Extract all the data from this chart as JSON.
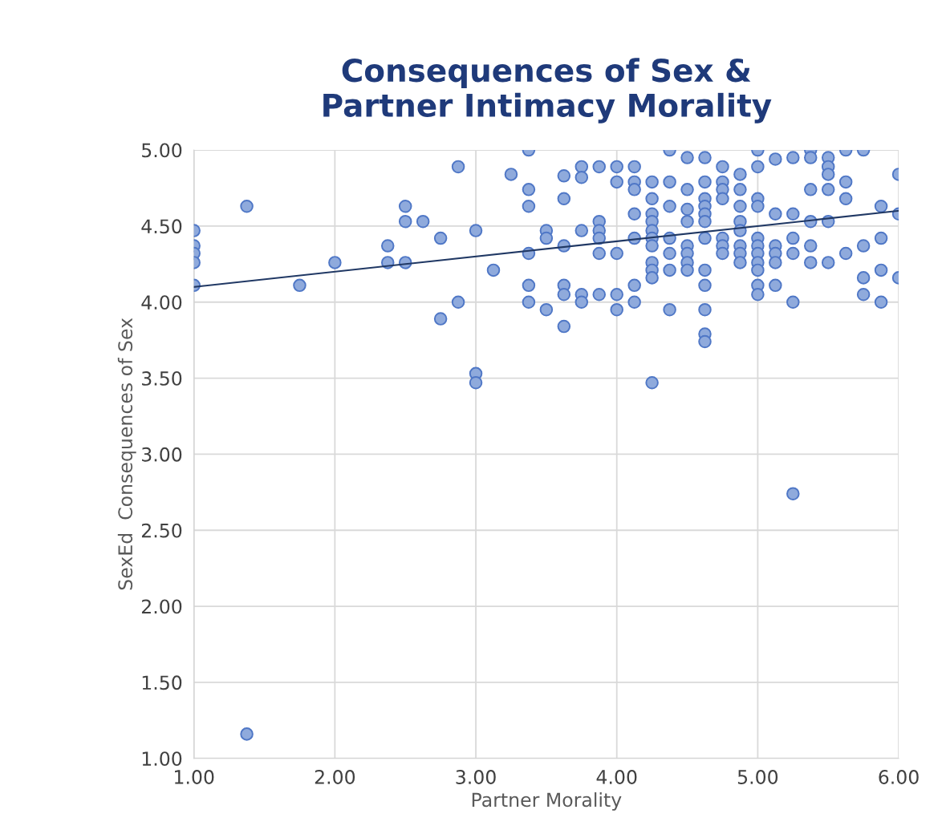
{
  "chart_data": {
    "type": "scatter",
    "title": "Consequences of Sex &\nPartner Intimacy Morality",
    "xlabel": "Partner Morality",
    "ylabel": "SexEd  Consequences of Sex",
    "xlim": [
      1,
      6
    ],
    "xticks": [
      {
        "value": 1,
        "label": "1.00"
      },
      {
        "value": 2,
        "label": "2.00"
      },
      {
        "value": 3,
        "label": "3.00"
      },
      {
        "value": 4,
        "label": "4.00"
      },
      {
        "value": 5,
        "label": "5.00"
      },
      {
        "value": 6,
        "label": "6.00"
      }
    ],
    "ylim": [
      1,
      5
    ],
    "yticks": [
      {
        "value": 1,
        "label": "1.00"
      },
      {
        "value": 1.5,
        "label": "1.50"
      },
      {
        "value": 2,
        "label": "2.00"
      },
      {
        "value": 2.5,
        "label": "2.50"
      },
      {
        "value": 3,
        "label": "3.00"
      },
      {
        "value": 3.5,
        "label": "3.50"
      },
      {
        "value": 4,
        "label": "4.00"
      },
      {
        "value": 4.5,
        "label": "4.50"
      },
      {
        "value": 5,
        "label": "5.00"
      }
    ],
    "grid": true,
    "series": [
      {
        "marker": "circle",
        "color": "#8faadc",
        "x": [
          1,
          1,
          1,
          1,
          1,
          1.375,
          1.375,
          1.75,
          2,
          2.375,
          2.375,
          2.5,
          2.5,
          2.5,
          2.625,
          2.75,
          2.75,
          2.875,
          2.875,
          3,
          3,
          3,
          3.125,
          3.25,
          3.375,
          3.375,
          3.375,
          3.375,
          3.375,
          3.375,
          3.5,
          3.5,
          3.5,
          3.625,
          3.625,
          3.625,
          3.625,
          3.625,
          3.625,
          3.75,
          3.75,
          3.75,
          3.75,
          3.75,
          3.875,
          3.875,
          3.875,
          3.875,
          3.875,
          3.875,
          4,
          4,
          4,
          4,
          4,
          4.125,
          4.125,
          4.125,
          4.125,
          4.125,
          4.125,
          4.125,
          4.25,
          4.25,
          4.25,
          4.25,
          4.25,
          4.25,
          4.25,
          4.25,
          4.25,
          4.25,
          4.25,
          4.375,
          4.375,
          4.375,
          4.375,
          4.375,
          4.375,
          4.375,
          4.5,
          4.5,
          4.5,
          4.5,
          4.5,
          4.5,
          4.5,
          4.5,
          4.625,
          4.625,
          4.625,
          4.625,
          4.625,
          4.625,
          4.625,
          4.625,
          4.625,
          4.625,
          4.625,
          4.625,
          4.75,
          4.75,
          4.75,
          4.75,
          4.75,
          4.75,
          4.75,
          4.875,
          4.875,
          4.875,
          4.875,
          4.875,
          4.875,
          4.875,
          4.875,
          5,
          5,
          5,
          5,
          5,
          5,
          5,
          5,
          5,
          5,
          5,
          5.125,
          5.125,
          5.125,
          5.125,
          5.125,
          5.125,
          5.25,
          5.25,
          5.25,
          5.25,
          5.25,
          5.25,
          5.375,
          5.375,
          5.375,
          5.375,
          5.375,
          5.375,
          5.5,
          5.5,
          5.5,
          5.5,
          5.5,
          5.5,
          5.625,
          5.625,
          5.625,
          5.625,
          5.75,
          5.75,
          5.75,
          5.75,
          5.875,
          5.875,
          5.875,
          5.875,
          6,
          6,
          6
        ],
        "values": [
          4.47,
          4.37,
          4.32,
          4.26,
          4.11,
          4.63,
          1.16,
          4.11,
          4.26,
          4.37,
          4.26,
          4.63,
          4.53,
          4.26,
          4.53,
          4.42,
          3.89,
          4.89,
          4.0,
          4.47,
          3.53,
          3.47,
          4.21,
          4.84,
          5.0,
          4.74,
          4.63,
          4.32,
          4.11,
          4.0,
          4.47,
          4.42,
          3.95,
          4.83,
          4.68,
          4.37,
          4.11,
          4.05,
          3.84,
          4.89,
          4.82,
          4.47,
          4.05,
          4.0,
          4.89,
          4.53,
          4.47,
          4.42,
          4.32,
          4.05,
          4.89,
          4.79,
          4.32,
          4.05,
          3.95,
          4.89,
          4.79,
          4.74,
          4.58,
          4.42,
          4.11,
          4.0,
          4.79,
          4.68,
          4.58,
          4.53,
          4.47,
          4.42,
          4.37,
          4.26,
          4.21,
          4.16,
          3.47,
          5.0,
          4.79,
          4.63,
          4.42,
          4.32,
          4.21,
          3.95,
          4.95,
          4.74,
          4.61,
          4.53,
          4.37,
          4.32,
          4.26,
          4.21,
          4.95,
          4.79,
          4.68,
          4.63,
          4.58,
          4.53,
          4.42,
          4.21,
          4.11,
          3.95,
          3.79,
          3.74,
          4.89,
          4.79,
          4.74,
          4.68,
          4.42,
          4.37,
          4.32,
          4.84,
          4.74,
          4.63,
          4.53,
          4.47,
          4.37,
          4.32,
          4.26,
          5.0,
          4.89,
          4.68,
          4.63,
          4.42,
          4.37,
          4.32,
          4.26,
          4.21,
          4.11,
          4.05,
          4.94,
          4.58,
          4.37,
          4.32,
          4.26,
          4.11,
          4.95,
          4.58,
          4.42,
          4.32,
          4.0,
          2.74,
          5.0,
          4.95,
          4.74,
          4.53,
          4.37,
          4.26,
          4.95,
          4.89,
          4.84,
          4.74,
          4.53,
          4.26,
          5.0,
          4.79,
          4.68,
          4.32,
          5.0,
          4.37,
          4.16,
          4.05,
          4.63,
          4.42,
          4.21,
          4.0,
          4.84,
          4.58,
          4.16
        ]
      },
      {
        "type": "line",
        "color": "#203864",
        "x": [
          1,
          6
        ],
        "values": [
          4.1,
          4.6
        ]
      }
    ]
  }
}
